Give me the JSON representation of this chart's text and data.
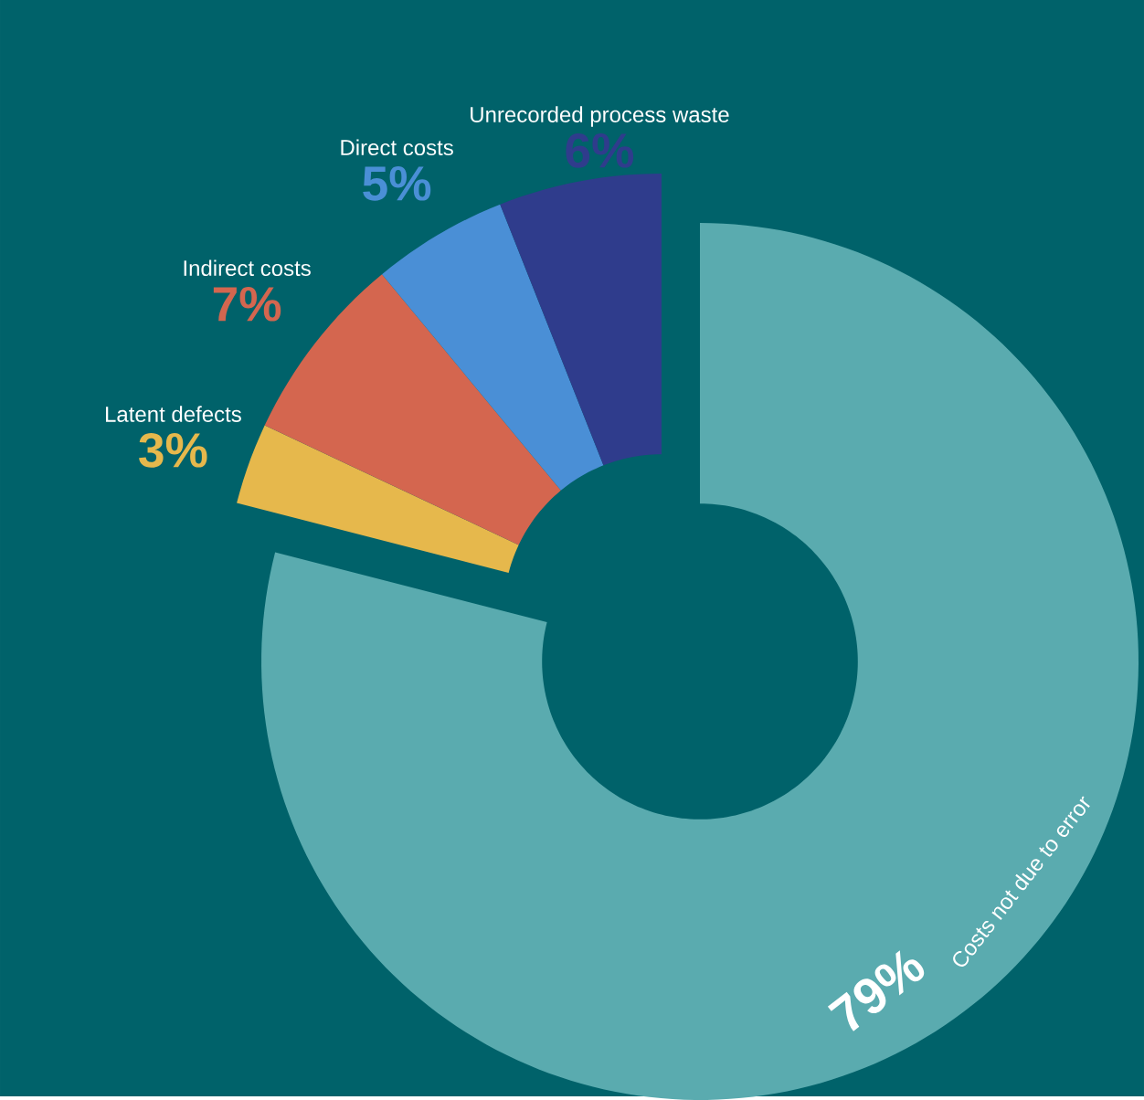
{
  "chart_data": {
    "type": "donut",
    "categories": [
      "Costs not due to error",
      "Latent defects",
      "Indirect costs",
      "Direct costs",
      "Unrecorded process waste"
    ],
    "values": [
      79,
      3,
      7,
      5,
      6
    ],
    "value_labels": [
      "79%",
      "3%",
      "7%",
      "5%",
      "6%"
    ],
    "colors": [
      "#5aabaf",
      "#e6b84c",
      "#d4664f",
      "#4a8fd6",
      "#2f3c8c"
    ]
  }
}
